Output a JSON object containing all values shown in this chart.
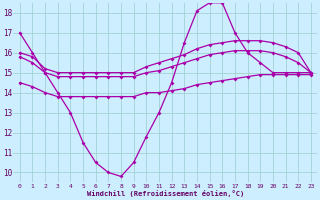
{
  "title": "",
  "xlabel": "Windchill (Refroidissement éolien,°C)",
  "x": [
    0,
    1,
    2,
    3,
    4,
    5,
    6,
    7,
    8,
    9,
    10,
    11,
    12,
    13,
    14,
    15,
    16,
    17,
    18,
    19,
    20,
    21,
    22,
    23
  ],
  "line1": [
    17,
    16,
    15,
    14,
    13,
    11.5,
    10.5,
    10,
    9.8,
    10.5,
    11.8,
    13,
    14.5,
    16.5,
    18.1,
    18.5,
    18.5,
    17,
    16,
    15.5,
    15,
    15,
    15,
    15
  ],
  "line2": [
    16.0,
    15.8,
    15.2,
    15.0,
    15.0,
    15.0,
    15.0,
    15.0,
    15.0,
    15.0,
    15.3,
    15.5,
    15.7,
    15.9,
    16.2,
    16.4,
    16.5,
    16.6,
    16.6,
    16.6,
    16.5,
    16.3,
    16.0,
    15.0
  ],
  "line3": [
    15.8,
    15.5,
    15.0,
    14.8,
    14.8,
    14.8,
    14.8,
    14.8,
    14.8,
    14.8,
    15.0,
    15.1,
    15.3,
    15.5,
    15.7,
    15.9,
    16.0,
    16.1,
    16.1,
    16.1,
    16.0,
    15.8,
    15.5,
    15.0
  ],
  "line4": [
    14.5,
    14.3,
    14.0,
    13.8,
    13.8,
    13.8,
    13.8,
    13.8,
    13.8,
    13.8,
    14.0,
    14.0,
    14.1,
    14.2,
    14.4,
    14.5,
    14.6,
    14.7,
    14.8,
    14.9,
    14.9,
    14.9,
    14.9,
    14.9
  ],
  "bg_color": "#cceeff",
  "grid_color": "#99cccc",
  "line_color": "#aa00aa",
  "ylim": [
    9.5,
    18.5
  ],
  "xlim": [
    -0.5,
    23.5
  ],
  "yticks": [
    10,
    11,
    12,
    13,
    14,
    15,
    16,
    17,
    18
  ],
  "xticks": [
    0,
    1,
    2,
    3,
    4,
    5,
    6,
    7,
    8,
    9,
    10,
    11,
    12,
    13,
    14,
    15,
    16,
    17,
    18,
    19,
    20,
    21,
    22,
    23
  ],
  "figsize": [
    3.2,
    2.0
  ],
  "dpi": 100
}
